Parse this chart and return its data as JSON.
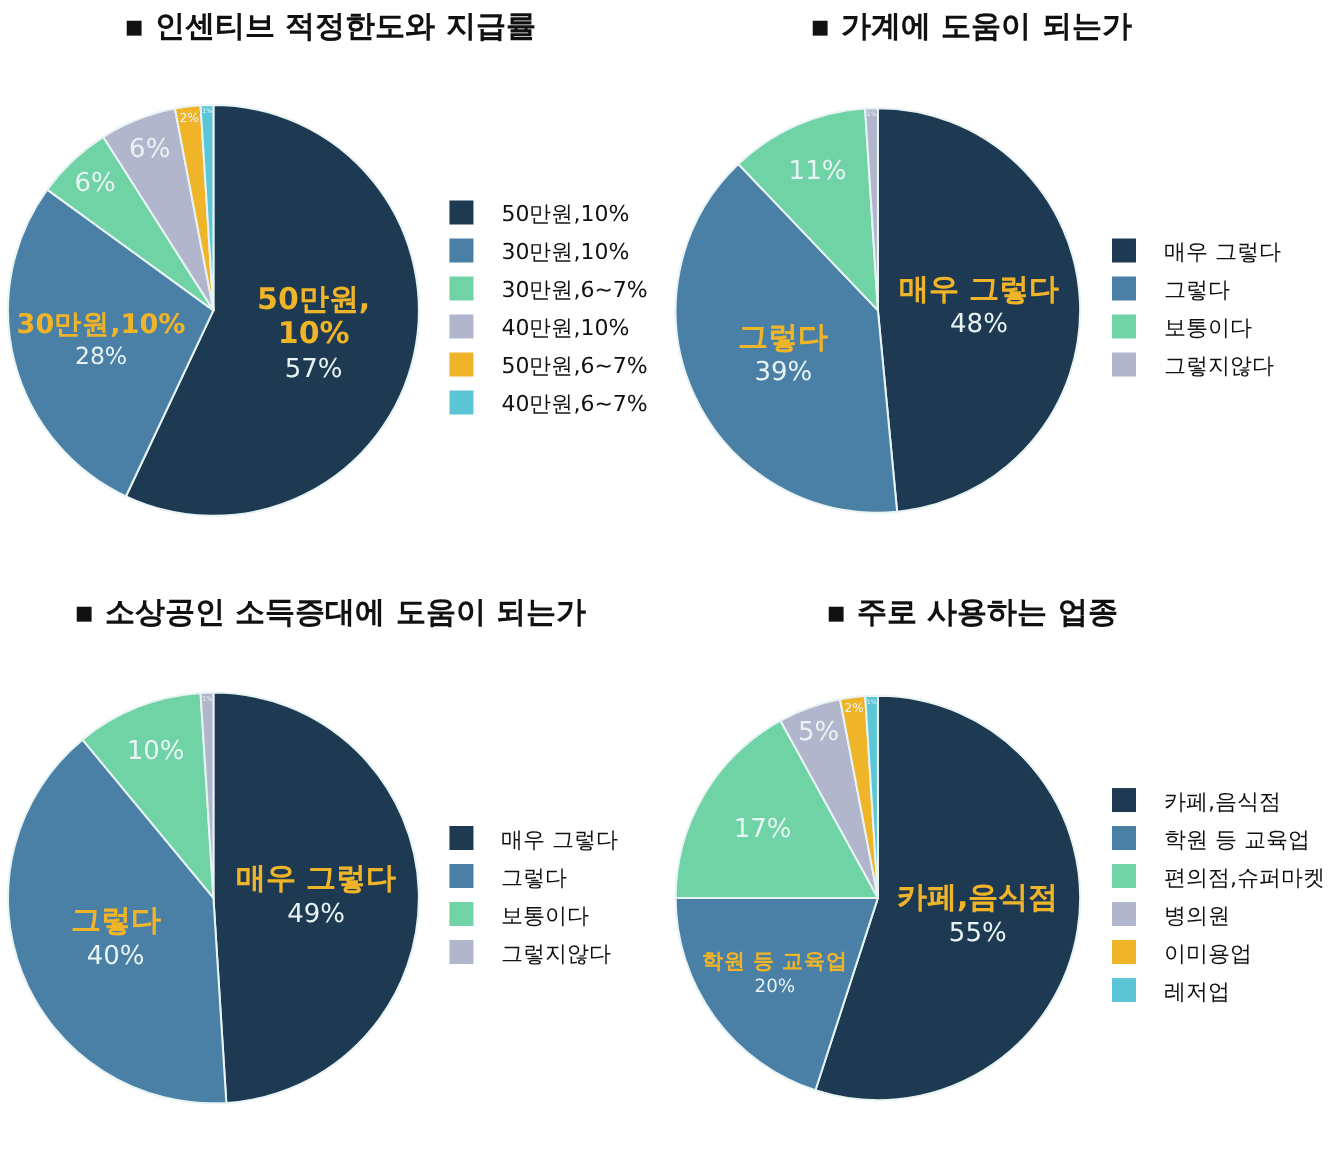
{
  "chart_data": [
    {
      "type": "pie",
      "title": "▪ 인센티브 적정한도와 지급률",
      "categories": [
        "50만원,10%",
        "30만원,10%",
        "30만원,6~7%",
        "40만원,10%",
        "50만원,6~7%",
        "40만원,6~7%"
      ],
      "values": [
        57,
        28,
        6,
        6,
        2,
        1
      ],
      "colors": [
        "#1d3a52",
        "#4a7fa6",
        "#6fd3a6",
        "#b2b6cc",
        "#f0b429",
        "#5cc6d6"
      ],
      "value_labels": [
        "50만원,\n10%\n57%",
        "30만원,10%\n28%",
        "6%",
        "6%",
        "2%",
        "1%"
      ],
      "legend": "right"
    },
    {
      "type": "pie",
      "title": "▪ 가계에 도움이 되는가",
      "categories": [
        "매우 그렇다",
        "그렇다",
        "보통이다",
        "그렇지않다"
      ],
      "values": [
        48,
        39,
        11,
        1
      ],
      "colors": [
        "#1d3a52",
        "#4a7fa6",
        "#6fd3a6",
        "#b2b6cc"
      ],
      "value_labels": [
        "매우 그렇다\n48%",
        "그렇다\n39%",
        "11%",
        "1%"
      ],
      "legend": "right"
    },
    {
      "type": "pie",
      "title": "▪ 소상공인 소득증대에 도움이 되는가",
      "categories": [
        "매우 그렇다",
        "그렇다",
        "보통이다",
        "그렇지않다"
      ],
      "values": [
        49,
        40,
        10,
        1
      ],
      "colors": [
        "#1d3a52",
        "#4a7fa6",
        "#6fd3a6",
        "#b2b6cc"
      ],
      "value_labels": [
        "매우 그렇다\n49%",
        "그렇다\n40%",
        "10%",
        "1%"
      ],
      "legend": "right"
    },
    {
      "type": "pie",
      "title": "▪ 주로 사용하는 업종",
      "categories": [
        "카페,음식점",
        "학원 등 교육업",
        "편의점,슈퍼마켓",
        "병의원",
        "이미용업",
        "레저업"
      ],
      "values": [
        55,
        20,
        17,
        5,
        2,
        1
      ],
      "colors": [
        "#1d3a52",
        "#4a7fa6",
        "#6fd3a6",
        "#b2b6cc",
        "#f0b429",
        "#5cc6d6"
      ],
      "value_labels": [
        "카페,음식점\n55%",
        "학원 등 교육업\n20%",
        "17%",
        "5%",
        "2%",
        "1%"
      ],
      "legend": "right"
    }
  ]
}
